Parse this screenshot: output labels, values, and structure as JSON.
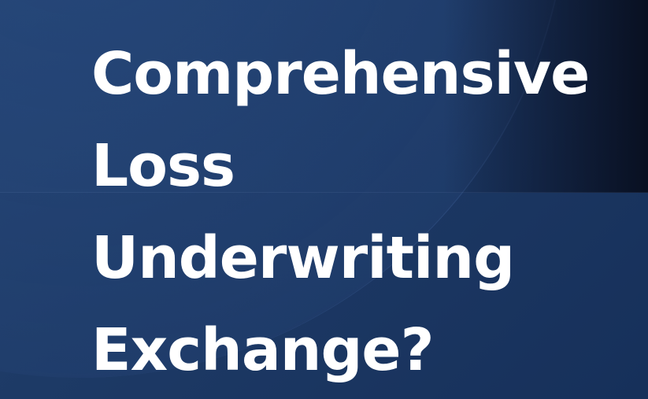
{
  "slide": {
    "title_lines": [
      "Comprehensive",
      "Loss",
      "Underwriting",
      "Exchange?"
    ]
  },
  "colors": {
    "background": "#1d3a66",
    "text": "#ffffff",
    "dark_corner": "#0b1326"
  }
}
